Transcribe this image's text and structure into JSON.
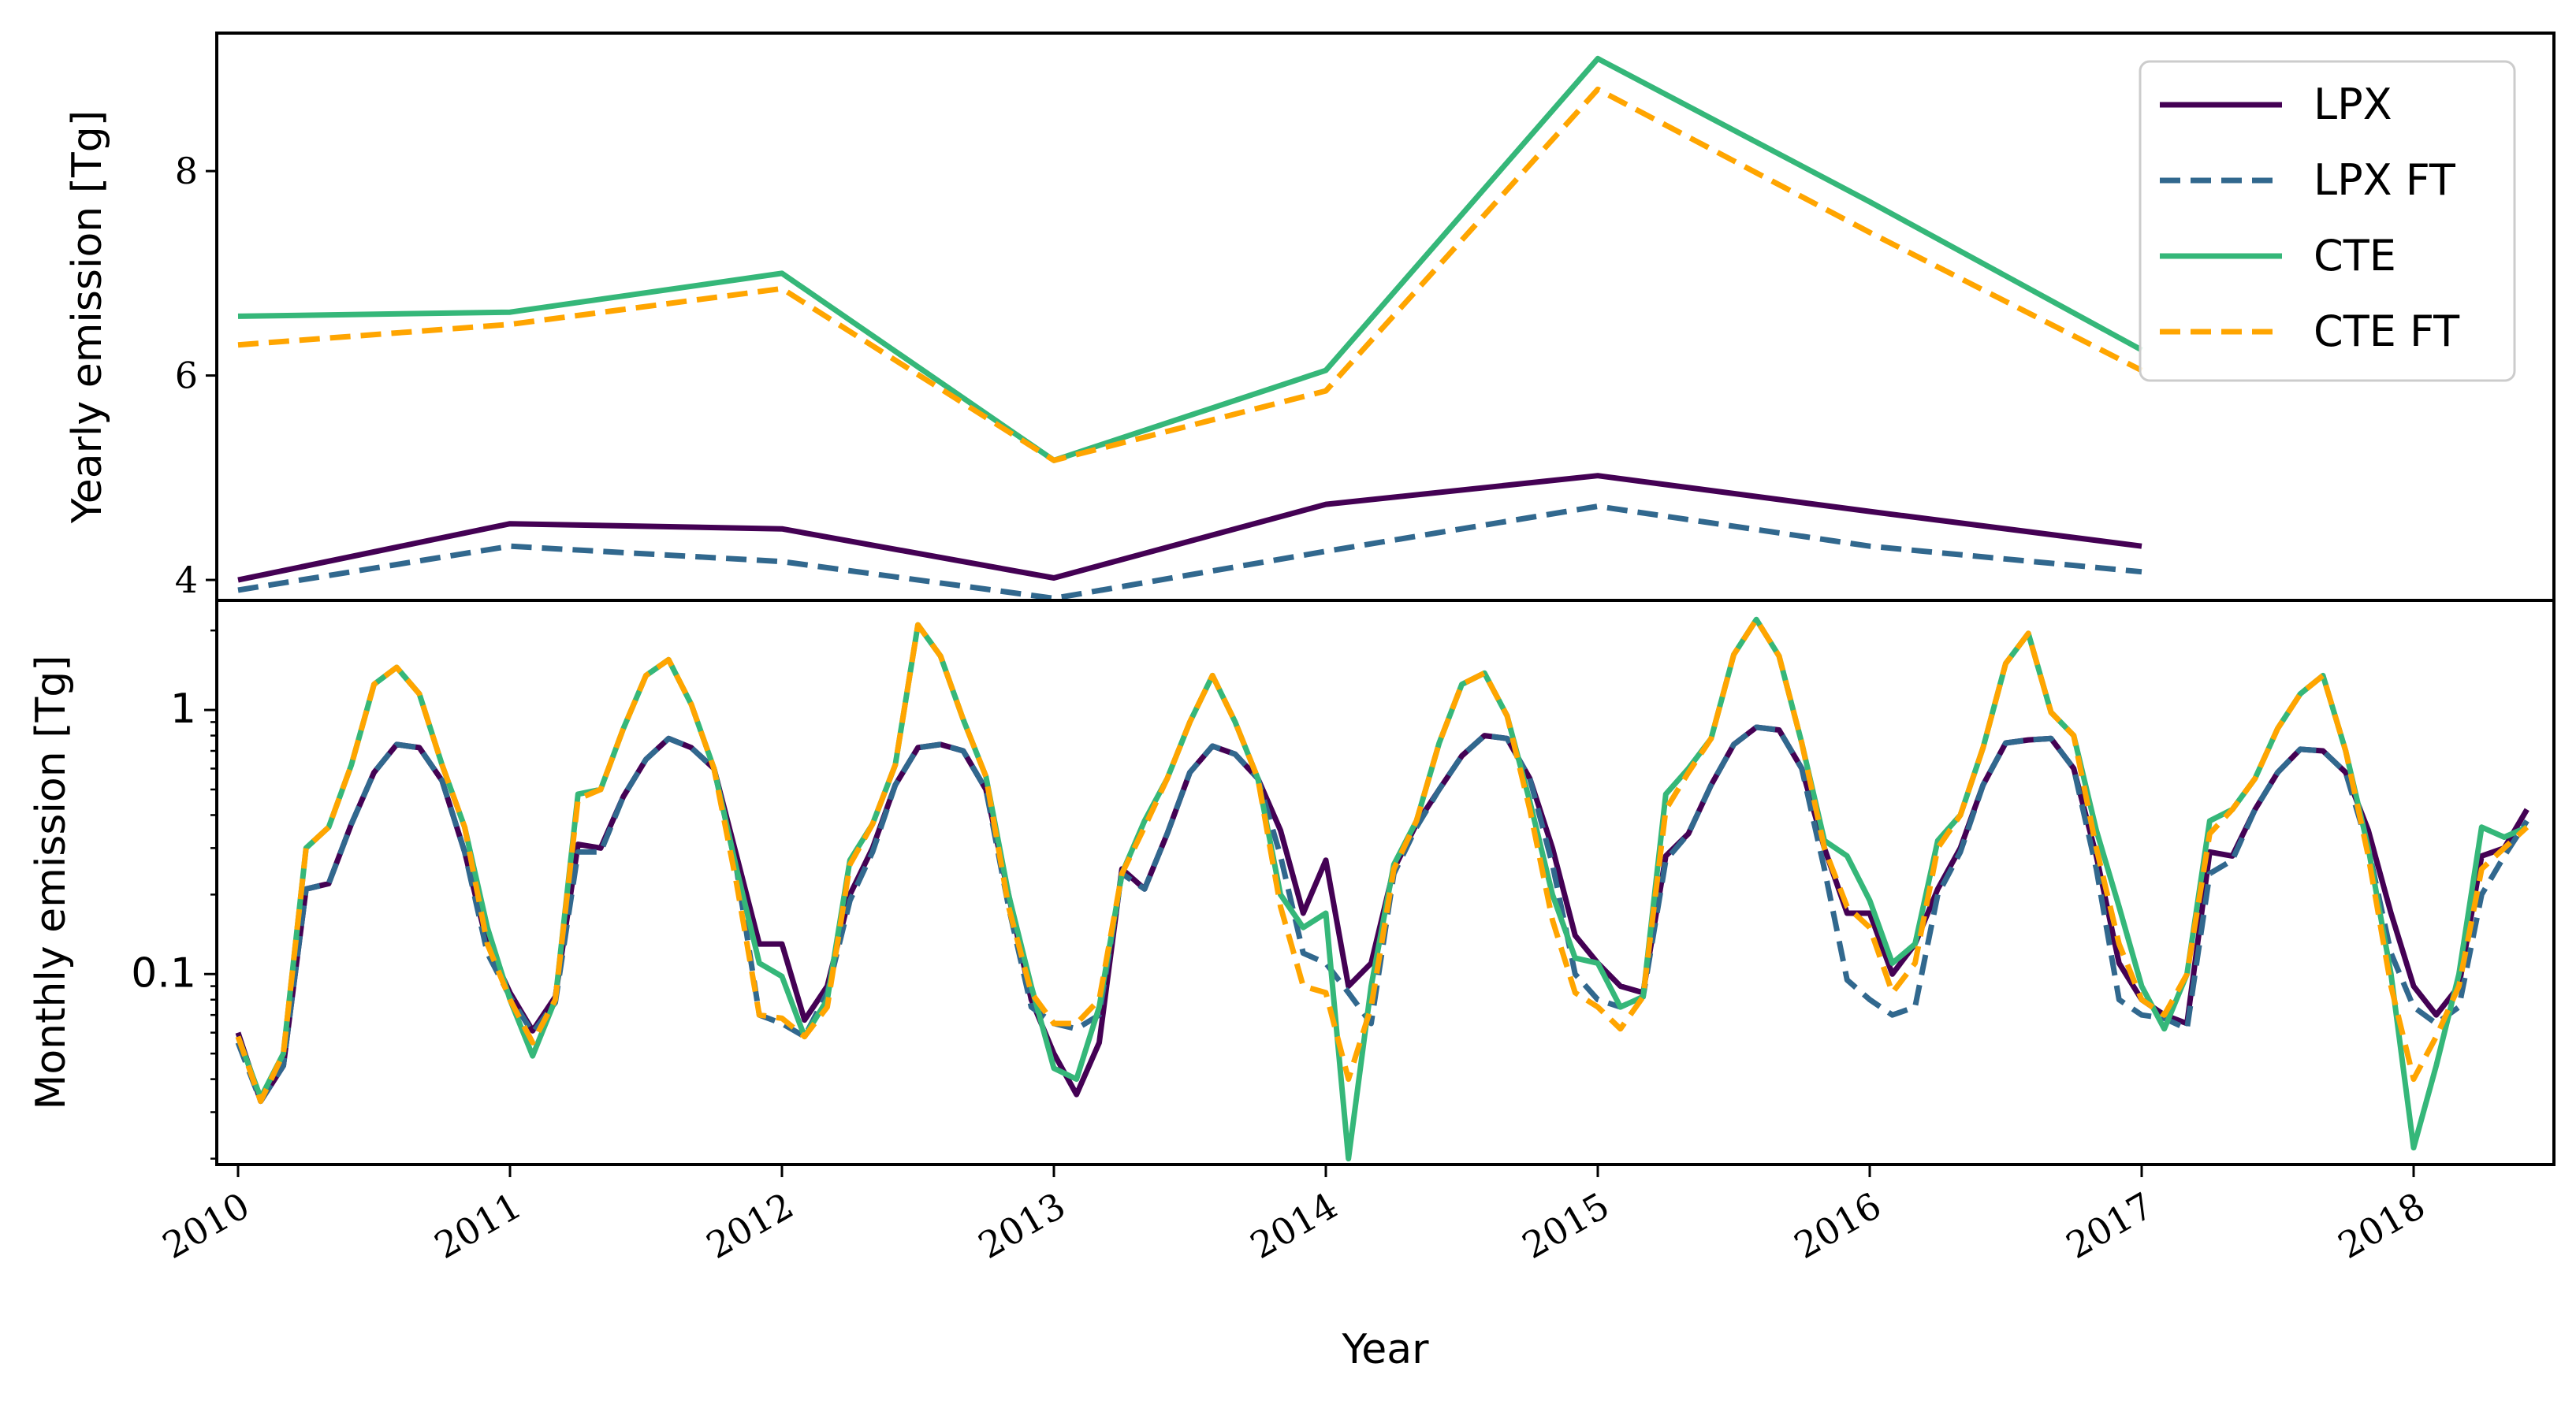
{
  "chart_data": [
    {
      "type": "line",
      "ylabel": "Yearly emission [Tg]",
      "ylim": [
        3.8,
        9.35
      ],
      "yticks": [
        4,
        6,
        8
      ],
      "grid": false,
      "legend": {
        "placement": "top-right",
        "entries": [
          {
            "label": "LPX",
            "color": "#440154",
            "style": "solid"
          },
          {
            "label": "LPX FT",
            "color": "#31688e",
            "style": "dashed"
          },
          {
            "label": "CTE",
            "color": "#35b779",
            "style": "solid"
          },
          {
            "label": "CTE FT",
            "color": "#ffa500",
            "style": "dashed"
          }
        ]
      },
      "x": [
        "2010-01",
        "2011-01",
        "2012-01",
        "2013-01",
        "2014-01",
        "2015-01",
        "2016-01",
        "2017-01"
      ],
      "series": [
        {
          "name": "LPX",
          "values": [
            4.0,
            4.55,
            4.5,
            4.02,
            4.74,
            5.02,
            4.67,
            4.33
          ]
        },
        {
          "name": "LPX FT",
          "values": [
            3.9,
            4.33,
            4.18,
            3.82,
            4.28,
            4.72,
            4.33,
            4.08
          ]
        },
        {
          "name": "CTE",
          "values": [
            6.58,
            6.62,
            7.0,
            5.17,
            6.05,
            9.1,
            7.7,
            6.25
          ]
        },
        {
          "name": "CTE FT",
          "values": [
            6.3,
            6.5,
            6.85,
            5.17,
            5.85,
            8.8,
            7.4,
            6.05
          ]
        }
      ]
    },
    {
      "type": "line",
      "ylabel": "Monthly emission [Tg]",
      "xlabel": "Year",
      "yscale": "log",
      "ylim": [
        0.019,
        2.6
      ],
      "yticks": [
        {
          "value": 0.1,
          "label": "0.1"
        },
        {
          "value": 1,
          "label": "1"
        }
      ],
      "xticks": [
        "2010",
        "2011",
        "2012",
        "2013",
        "2014",
        "2015",
        "2016",
        "2017",
        "2018"
      ],
      "x_start": "2010-01",
      "grid": false,
      "series": [
        {
          "name": "LPX",
          "values": [
            0.06,
            0.033,
            0.045,
            0.21,
            0.22,
            0.37,
            0.58,
            0.74,
            0.72,
            0.54,
            0.29,
            0.13,
            0.085,
            0.061,
            0.082,
            0.31,
            0.3,
            0.47,
            0.65,
            0.78,
            0.72,
            0.6,
            0.28,
            0.13,
            0.13,
            0.067,
            0.09,
            0.2,
            0.3,
            0.52,
            0.72,
            0.74,
            0.7,
            0.5,
            0.2,
            0.08,
            0.05,
            0.035,
            0.055,
            0.25,
            0.21,
            0.34,
            0.58,
            0.73,
            0.68,
            0.55,
            0.35,
            0.17,
            0.27,
            0.09,
            0.11,
            0.25,
            0.37,
            0.5,
            0.67,
            0.8,
            0.78,
            0.55,
            0.3,
            0.14,
            0.11,
            0.09,
            0.085,
            0.28,
            0.34,
            0.52,
            0.74,
            0.86,
            0.84,
            0.6,
            0.3,
            0.17,
            0.17,
            0.1,
            0.13,
            0.21,
            0.3,
            0.52,
            0.75,
            0.77,
            0.78,
            0.6,
            0.28,
            0.11,
            0.08,
            0.07,
            0.065,
            0.29,
            0.28,
            0.42,
            0.58,
            0.71,
            0.7,
            0.58,
            0.35,
            0.17,
            0.09,
            0.07,
            0.09,
            0.28,
            0.3,
            0.42
          ]
        },
        {
          "name": "LPX FT",
          "values": [
            0.055,
            0.033,
            0.045,
            0.21,
            0.22,
            0.37,
            0.58,
            0.74,
            0.72,
            0.54,
            0.29,
            0.12,
            0.082,
            0.06,
            0.078,
            0.29,
            0.29,
            0.47,
            0.65,
            0.78,
            0.72,
            0.6,
            0.25,
            0.07,
            0.065,
            0.058,
            0.085,
            0.19,
            0.29,
            0.52,
            0.72,
            0.74,
            0.7,
            0.5,
            0.18,
            0.075,
            0.065,
            0.062,
            0.07,
            0.24,
            0.21,
            0.34,
            0.58,
            0.73,
            0.68,
            0.55,
            0.28,
            0.12,
            0.11,
            0.085,
            0.065,
            0.24,
            0.36,
            0.5,
            0.67,
            0.8,
            0.78,
            0.55,
            0.26,
            0.1,
            0.08,
            0.075,
            0.082,
            0.27,
            0.34,
            0.52,
            0.74,
            0.86,
            0.84,
            0.6,
            0.25,
            0.095,
            0.08,
            0.07,
            0.075,
            0.2,
            0.29,
            0.52,
            0.75,
            0.77,
            0.78,
            0.6,
            0.25,
            0.08,
            0.07,
            0.068,
            0.062,
            0.24,
            0.27,
            0.42,
            0.58,
            0.71,
            0.7,
            0.58,
            0.3,
            0.12,
            0.075,
            0.065,
            0.075,
            0.2,
            0.28,
            0.38
          ]
        },
        {
          "name": "CTE",
          "values": [
            0.058,
            0.034,
            0.05,
            0.3,
            0.36,
            0.62,
            1.25,
            1.45,
            1.15,
            0.62,
            0.36,
            0.15,
            0.08,
            0.049,
            0.08,
            0.48,
            0.5,
            0.85,
            1.35,
            1.55,
            1.05,
            0.6,
            0.25,
            0.11,
            0.098,
            0.058,
            0.08,
            0.27,
            0.37,
            0.62,
            2.1,
            1.6,
            0.92,
            0.56,
            0.2,
            0.09,
            0.044,
            0.04,
            0.075,
            0.24,
            0.38,
            0.55,
            0.9,
            1.35,
            0.9,
            0.55,
            0.2,
            0.15,
            0.17,
            0.02,
            0.09,
            0.26,
            0.38,
            0.75,
            1.25,
            1.38,
            0.95,
            0.45,
            0.2,
            0.115,
            0.11,
            0.075,
            0.082,
            0.48,
            0.6,
            0.78,
            1.62,
            2.2,
            1.6,
            0.75,
            0.32,
            0.28,
            0.19,
            0.11,
            0.13,
            0.32,
            0.4,
            0.72,
            1.5,
            1.95,
            0.98,
            0.8,
            0.35,
            0.18,
            0.09,
            0.062,
            0.1,
            0.38,
            0.42,
            0.55,
            0.85,
            1.15,
            1.35,
            0.7,
            0.3,
            0.1,
            0.022,
            0.045,
            0.1,
            0.36,
            0.33,
            0.36
          ]
        },
        {
          "name": "CTE FT",
          "values": [
            0.058,
            0.033,
            0.05,
            0.3,
            0.36,
            0.62,
            1.25,
            1.45,
            1.15,
            0.62,
            0.36,
            0.13,
            0.08,
            0.055,
            0.08,
            0.46,
            0.5,
            0.85,
            1.35,
            1.55,
            1.05,
            0.6,
            0.22,
            0.07,
            0.068,
            0.058,
            0.075,
            0.26,
            0.37,
            0.62,
            2.1,
            1.6,
            0.92,
            0.56,
            0.18,
            0.085,
            0.065,
            0.065,
            0.08,
            0.24,
            0.36,
            0.55,
            0.9,
            1.35,
            0.9,
            0.55,
            0.18,
            0.09,
            0.085,
            0.04,
            0.075,
            0.25,
            0.38,
            0.75,
            1.25,
            1.38,
            0.95,
            0.42,
            0.16,
            0.085,
            0.075,
            0.062,
            0.082,
            0.42,
            0.58,
            0.78,
            1.62,
            2.2,
            1.6,
            0.75,
            0.3,
            0.18,
            0.15,
            0.085,
            0.11,
            0.3,
            0.4,
            0.72,
            1.5,
            1.95,
            0.98,
            0.8,
            0.3,
            0.13,
            0.08,
            0.07,
            0.1,
            0.34,
            0.42,
            0.55,
            0.85,
            1.15,
            1.35,
            0.7,
            0.28,
            0.09,
            0.04,
            0.058,
            0.09,
            0.25,
            0.3,
            0.36
          ]
        }
      ]
    }
  ]
}
